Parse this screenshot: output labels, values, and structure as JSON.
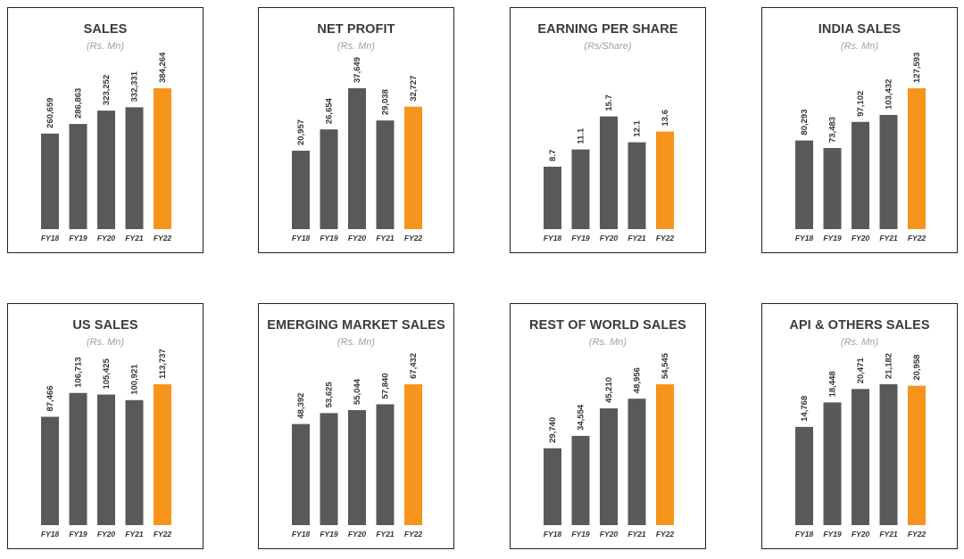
{
  "colors": {
    "base": "#595959",
    "highlight": "#F7941D"
  },
  "chart_data": [
    {
      "type": "bar",
      "title": "SALES",
      "subtitle": "(Rs. Mn)",
      "categories": [
        "FY18",
        "FY19",
        "FY20",
        "FY21",
        "FY22"
      ],
      "values": [
        260659,
        286863,
        323252,
        332331,
        384264
      ],
      "labels": [
        "260,659",
        "286,863",
        "323,252",
        "332,331",
        "384,264"
      ],
      "highlight": "FY22"
    },
    {
      "type": "bar",
      "title": "NET PROFIT",
      "subtitle": "(Rs. Mn)",
      "categories": [
        "FY18",
        "FY19",
        "FY20",
        "FY21",
        "FY22"
      ],
      "values": [
        20957,
        26654,
        37649,
        29038,
        32727
      ],
      "labels": [
        "20,957",
        "26,654",
        "37,649",
        "29,038",
        "32,727"
      ],
      "highlight": "FY22"
    },
    {
      "type": "bar",
      "title": "EARNING PER SHARE",
      "subtitle": "(Rs/Share)",
      "categories": [
        "FY18",
        "FY19",
        "FY20",
        "FY21",
        "FY22"
      ],
      "values": [
        8.7,
        11.1,
        15.7,
        12.1,
        13.6
      ],
      "labels": [
        "8.7",
        "11.1",
        "15.7",
        "12.1",
        "13.6"
      ],
      "highlight": "FY22"
    },
    {
      "type": "bar",
      "title": "INDIA SALES",
      "subtitle": "(Rs. Mn)",
      "categories": [
        "FY18",
        "FY19",
        "FY20",
        "FY21",
        "FY22"
      ],
      "values": [
        80293,
        73483,
        97102,
        103432,
        127593
      ],
      "labels": [
        "80,293",
        "73,483",
        "97,102",
        "103,432",
        "127,593"
      ],
      "highlight": "FY22"
    },
    {
      "type": "bar",
      "title": "US SALES",
      "subtitle": "(Rs. Mn)",
      "categories": [
        "FY18",
        "FY19",
        "FY20",
        "FY21",
        "FY22"
      ],
      "values": [
        87466,
        106713,
        105425,
        100921,
        113737
      ],
      "labels": [
        "87,466",
        "106,713",
        "105,425",
        "100,921",
        "113,737"
      ],
      "highlight": "FY22"
    },
    {
      "type": "bar",
      "title": "EMERGING MARKET SALES",
      "subtitle": "(Rs. Mn)",
      "categories": [
        "FY18",
        "FY19",
        "FY20",
        "FY21",
        "FY22"
      ],
      "values": [
        48392,
        53625,
        55044,
        57840,
        67432
      ],
      "labels": [
        "48,392",
        "53,625",
        "55,044",
        "57,840",
        "67,432"
      ],
      "highlight": "FY22"
    },
    {
      "type": "bar",
      "title": "REST OF WORLD SALES",
      "subtitle": "(Rs. Mn)",
      "categories": [
        "FY18",
        "FY19",
        "FY20",
        "FY21",
        "FY22"
      ],
      "values": [
        29740,
        34554,
        45210,
        48956,
        54545
      ],
      "labels": [
        "29,740",
        "34,554",
        "45,210",
        "48,956",
        "54,545"
      ],
      "highlight": "FY22"
    },
    {
      "type": "bar",
      "title": "API & OTHERS SALES",
      "subtitle": "(Rs. Mn)",
      "categories": [
        "FY18",
        "FY19",
        "FY20",
        "FY21",
        "FY22"
      ],
      "values": [
        14768,
        18448,
        20471,
        21182,
        20958
      ],
      "labels": [
        "14,768",
        "18,448",
        "20,471",
        "21,182",
        "20,958"
      ],
      "highlight": "FY22"
    }
  ]
}
